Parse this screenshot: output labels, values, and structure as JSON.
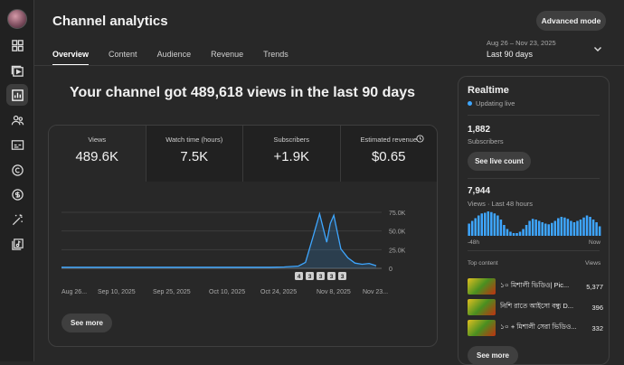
{
  "header": {
    "title": "Channel analytics",
    "advanced_mode": "Advanced mode"
  },
  "tabs": [
    {
      "label": "Overview",
      "active": true
    },
    {
      "label": "Content",
      "active": false
    },
    {
      "label": "Audience",
      "active": false
    },
    {
      "label": "Revenue",
      "active": false
    },
    {
      "label": "Trends",
      "active": false
    }
  ],
  "date_selector": {
    "range": "Aug 26 – Nov 23, 2025",
    "label": "Last 90 days"
  },
  "headline": "Your channel got 489,618 views in the last 90 days",
  "metrics": [
    {
      "label": "Views",
      "value": "489.6K"
    },
    {
      "label": "Watch time (hours)",
      "value": "7.5K"
    },
    {
      "label": "Subscribers",
      "value": "+1.9K"
    },
    {
      "label": "Estimated revenue",
      "value": "$0.65"
    }
  ],
  "chart_data": {
    "type": "area",
    "title": "",
    "xlabel": "",
    "ylabel": "",
    "x_tick_labels": [
      "Aug 26...",
      "Sep 10, 2025",
      "Sep 25, 2025",
      "Oct 10, 2025",
      "Oct 24, 2025",
      "Nov 8, 2025",
      "Nov 23..."
    ],
    "y_tick_labels": [
      "75.0K",
      "50.0K",
      "25.0K",
      "0"
    ],
    "ylim": [
      0,
      75000
    ],
    "grid": true,
    "series": [
      {
        "color": "#3ea6ff",
        "points": [
          [
            "Aug 26",
            1500
          ],
          [
            "Sep 10",
            1500
          ],
          [
            "Sep 25",
            1500
          ],
          [
            "Oct 10",
            1500
          ],
          [
            "Oct 24",
            1500
          ],
          [
            "Oct 28",
            1800
          ],
          [
            "Nov 1",
            3000
          ],
          [
            "Nov 3",
            8000
          ],
          [
            "Nov 5",
            40000
          ],
          [
            "Nov 7",
            73000
          ],
          [
            "Nov 9",
            35000
          ],
          [
            "Nov 10",
            60000
          ],
          [
            "Nov 11",
            71000
          ],
          [
            "Nov 13",
            26000
          ],
          [
            "Nov 15",
            14000
          ],
          [
            "Nov 17",
            7000
          ],
          [
            "Nov 19",
            5500
          ],
          [
            "Nov 21",
            6500
          ],
          [
            "Nov 23",
            3500
          ]
        ]
      }
    ],
    "annotations": [
      "4",
      "3",
      "3",
      "3",
      "3"
    ]
  },
  "card_see_more": "See more",
  "realtime": {
    "title": "Realtime",
    "status": "Updating live",
    "subscribers_value": "1,882",
    "subscribers_label": "Subscribers",
    "see_live_count": "See live count",
    "views_value": "7,944",
    "views_label": "Views · Last 48 hours",
    "axis_start": "-48h",
    "axis_end": "Now",
    "bars": [
      18,
      22,
      26,
      30,
      33,
      34,
      36,
      35,
      33,
      30,
      24,
      16,
      10,
      6,
      4,
      4,
      6,
      10,
      16,
      22,
      25,
      24,
      22,
      20,
      18,
      17,
      19,
      22,
      26,
      28,
      27,
      25,
      22,
      20,
      22,
      24,
      27,
      30,
      28,
      24,
      20,
      14
    ],
    "top_content_label": "Top content",
    "views_col_label": "Views",
    "top_content": [
      {
        "title": "১০ মিশালী ভিডিও| Pic...",
        "views": "5,377"
      },
      {
        "title": "নিশি রাতে আইসো বন্ধু D...",
        "views": "396"
      },
      {
        "title": "১০ + মিশালী সেরা ভিডিও...",
        "views": "332"
      }
    ],
    "see_more": "See more"
  }
}
